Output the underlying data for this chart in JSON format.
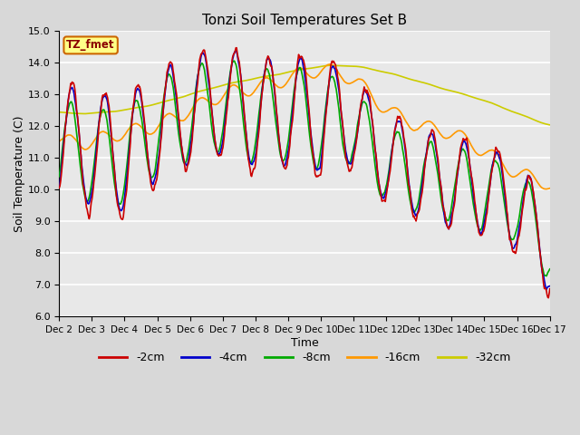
{
  "title": "Tonzi Soil Temperatures Set B",
  "xlabel": "Time",
  "ylabel": "Soil Temperature (C)",
  "ylim": [
    6.0,
    15.0
  ],
  "yticks": [
    6.0,
    7.0,
    8.0,
    9.0,
    10.0,
    11.0,
    12.0,
    13.0,
    14.0,
    15.0
  ],
  "xtick_labels": [
    "Dec 2",
    "Dec 3",
    "Dec 4",
    "Dec 5",
    "Dec 6",
    "Dec 7",
    "Dec 8",
    "Dec 9",
    "Dec 10",
    "Dec 11",
    "Dec 12",
    "Dec 13",
    "Dec 14",
    "Dec 15",
    "Dec 16",
    "Dec 17"
  ],
  "legend_label": "TZ_fmet",
  "series_labels": [
    "-2cm",
    "-4cm",
    "-8cm",
    "-16cm",
    "-32cm"
  ],
  "series_colors": [
    "#cc0000",
    "#0000cc",
    "#00aa00",
    "#ff9900",
    "#cccc00"
  ],
  "figsize": [
    6.4,
    4.8
  ],
  "dpi": 100
}
